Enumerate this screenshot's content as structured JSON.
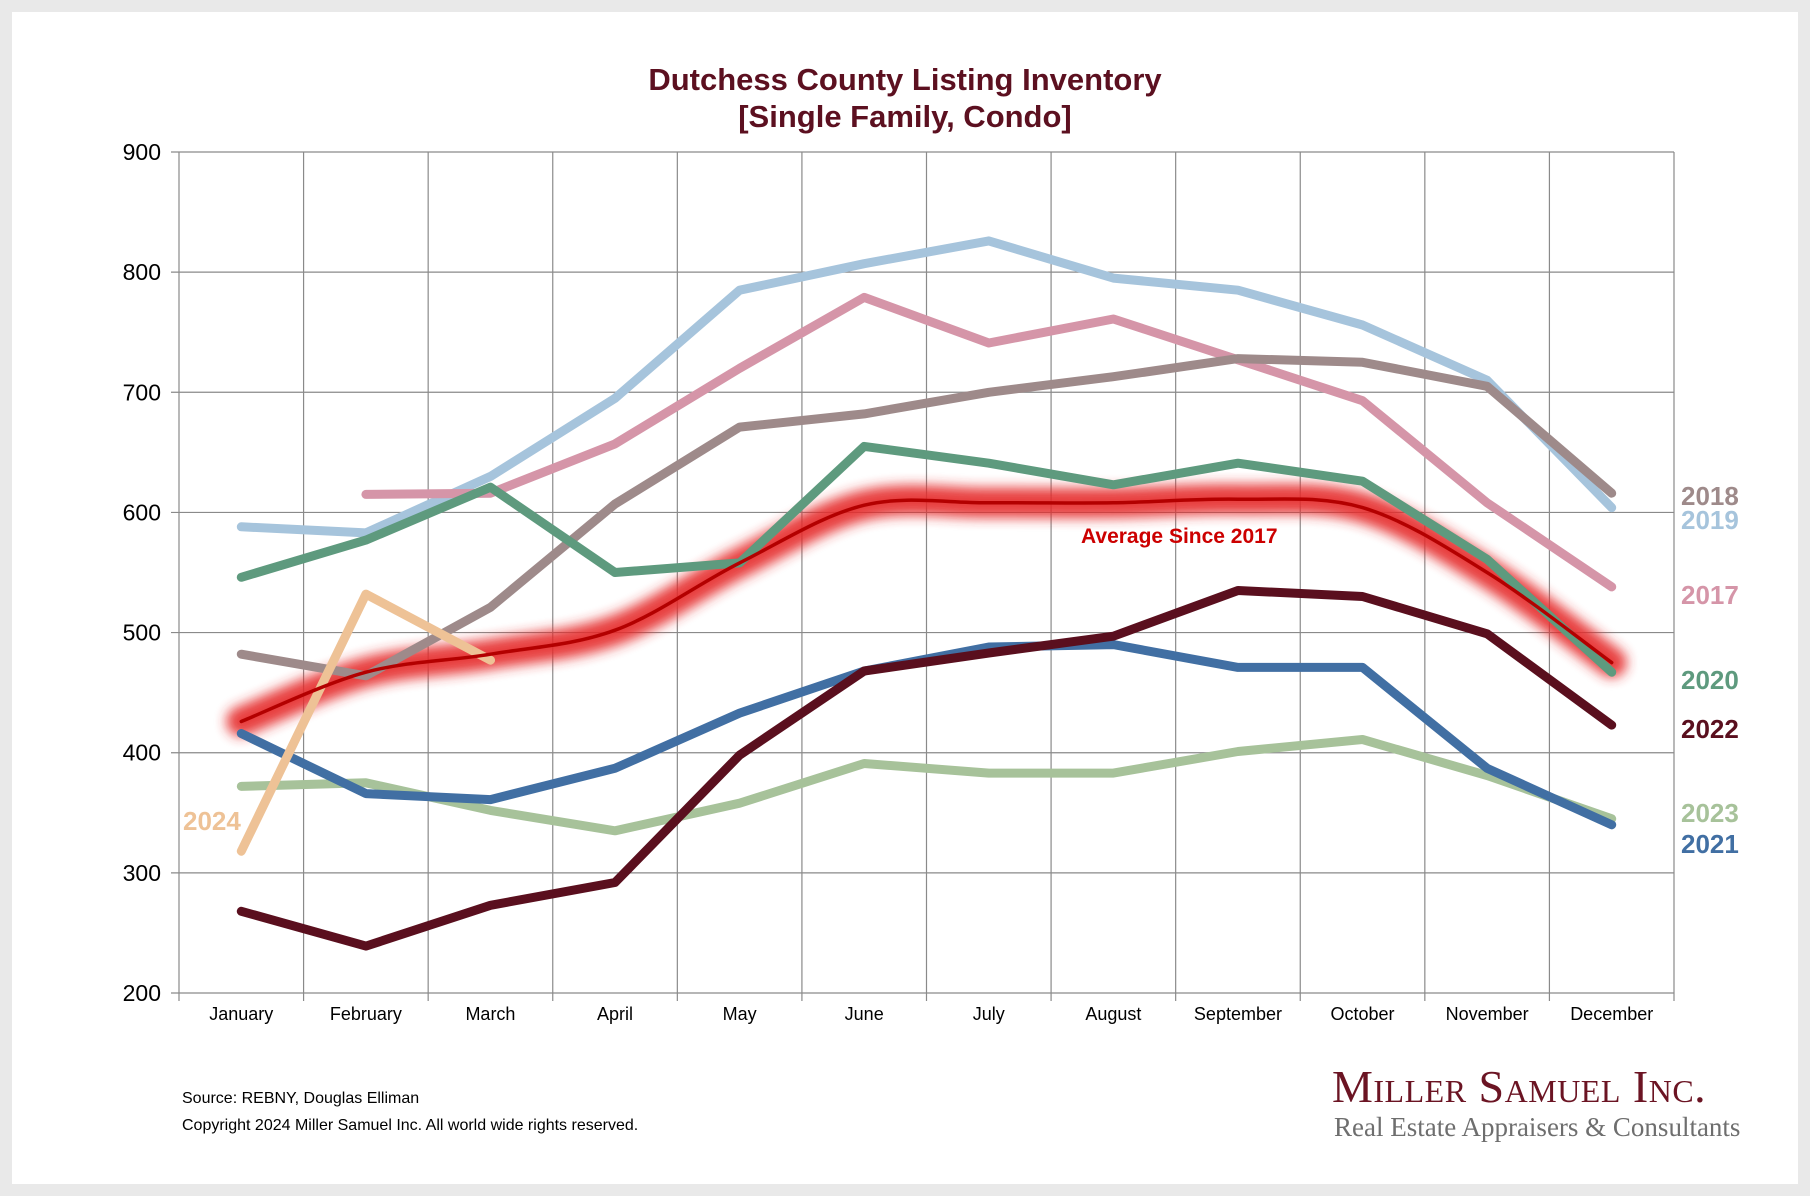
{
  "chart_data": {
    "type": "line",
    "title": "Dutchess County Listing Inventory",
    "subtitle": "[Single Family, Condo]",
    "xlabel": "",
    "ylabel": "",
    "ylim": [
      200,
      900
    ],
    "yticks": [
      200,
      300,
      400,
      500,
      600,
      700,
      800,
      900
    ],
    "grid": true,
    "categories": [
      "January",
      "February",
      "March",
      "April",
      "May",
      "June",
      "July",
      "August",
      "September",
      "October",
      "November",
      "December"
    ],
    "series": [
      {
        "name": "2019",
        "color": "#a6c4dc",
        "values": [
          588,
          583,
          630,
          695,
          785,
          807,
          826,
          795,
          785,
          756,
          710,
          604
        ],
        "label_pos": "right"
      },
      {
        "name": "2017",
        "color": "#d595a8",
        "values": [
          null,
          615,
          616,
          657,
          720,
          779,
          741,
          761,
          727,
          693,
          608,
          538
        ],
        "label_pos": "right"
      },
      {
        "name": "2018",
        "color": "#9e8a8a",
        "values": [
          482,
          464,
          521,
          607,
          671,
          682,
          700,
          713,
          728,
          725,
          705,
          616
        ],
        "label_pos": "right"
      },
      {
        "name": "2020",
        "color": "#5e9a7e",
        "values": [
          546,
          577,
          621,
          550,
          558,
          655,
          641,
          623,
          641,
          626,
          561,
          467
        ],
        "label_pos": "right"
      },
      {
        "name": "2023",
        "color": "#a7c29a",
        "values": [
          372,
          375,
          352,
          335,
          358,
          391,
          383,
          383,
          401,
          411,
          381,
          345
        ],
        "label_pos": "right"
      },
      {
        "name": "2021",
        "color": "#416fa3",
        "values": [
          416,
          366,
          361,
          387,
          433,
          468,
          488,
          490,
          471,
          471,
          387,
          340
        ],
        "label_pos": "right"
      },
      {
        "name": "2022",
        "color": "#5a0f1e",
        "values": [
          268,
          239,
          273,
          292,
          398,
          468,
          483,
          497,
          535,
          530,
          499,
          423
        ],
        "label_pos": "right"
      },
      {
        "name": "2024",
        "color": "#eec296",
        "values": [
          318,
          532,
          477,
          null,
          null,
          null,
          null,
          null,
          null,
          null,
          null,
          null
        ],
        "label_pos": "left"
      },
      {
        "name": "Average Since 2017",
        "color": "#b30000",
        "glow": "#e52a2a",
        "values": [
          426,
          467,
          482,
          502,
          558,
          606,
          608,
          608,
          611,
          604,
          550,
          475
        ],
        "label_pos": "annotation"
      }
    ],
    "right_labels": [
      {
        "text": "2018",
        "color": "#9e8a8a"
      },
      {
        "text": "2019",
        "color": "#a6c4dc"
      },
      {
        "text": "2017",
        "color": "#d595a8"
      },
      {
        "text": "2020",
        "color": "#5e9a7e"
      },
      {
        "text": "2022",
        "color": "#5a0f1e"
      },
      {
        "text": "2023",
        "color": "#a7c29a"
      },
      {
        "text": "2021",
        "color": "#416fa3"
      }
    ],
    "left_label": {
      "text": "2024",
      "color": "#eec296"
    },
    "annotation": {
      "text": "Average  Since 2017",
      "color": "#cc0000"
    }
  },
  "footer": {
    "source": "Source: REBNY, Douglas Elliman",
    "copyright": "Copyright 2024 Miller Samuel Inc.  All world wide rights reserved."
  },
  "logo": {
    "name": "Miller Samuel Inc.",
    "tagline": "Real Estate Appraisers & Consultants"
  }
}
